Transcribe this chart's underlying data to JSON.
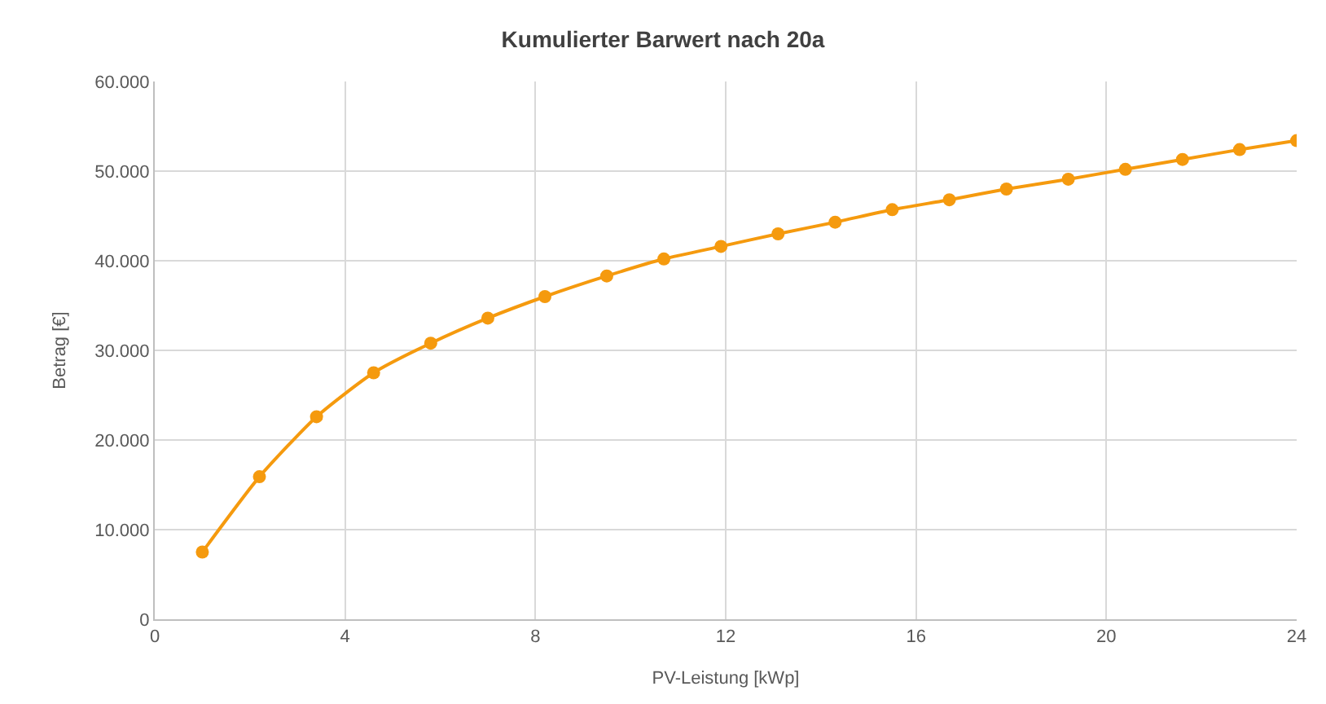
{
  "chart_data": {
    "type": "line",
    "title": "Kumulierter Barwert nach 20a",
    "xlabel": "PV-Leistung [kWp]",
    "ylabel": "Betrag [€]",
    "x": [
      1.0,
      2.2,
      3.4,
      4.6,
      5.8,
      7.0,
      8.2,
      9.5,
      10.7,
      11.9,
      13.1,
      14.3,
      15.5,
      16.7,
      17.9,
      19.2,
      20.4,
      21.6,
      22.8,
      24.0
    ],
    "series": [
      {
        "color": "#f59a0e",
        "values": [
          7500,
          15900,
          22600,
          27500,
          30800,
          33600,
          36000,
          38300,
          40200,
          41600,
          43000,
          44300,
          45700,
          46800,
          48000,
          49100,
          50200,
          51300,
          52400,
          53400
        ]
      }
    ],
    "xlim": [
      0,
      24
    ],
    "xticks": [
      0,
      4,
      8,
      12,
      16,
      20,
      24
    ],
    "ylim": [
      0,
      60000
    ],
    "yticks": [
      {
        "value": 0,
        "label": "0"
      },
      {
        "value": 10000,
        "label": "10.000"
      },
      {
        "value": 20000,
        "label": "20.000"
      },
      {
        "value": 30000,
        "label": "30.000"
      },
      {
        "value": 40000,
        "label": "40.000"
      },
      {
        "value": 50000,
        "label": "50.000"
      },
      {
        "value": 60000,
        "label": "60.000"
      }
    ],
    "grid": true,
    "marker": "circle",
    "line_style": "solid",
    "legend": false
  }
}
